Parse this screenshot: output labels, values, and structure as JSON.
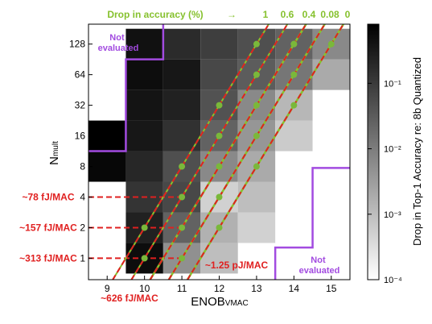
{
  "chart_data": {
    "type": "heatmap",
    "x_label_main": "ENOB",
    "x_label_sub": "VMAC",
    "y_label_main": "N",
    "y_label_sub": "mult",
    "x_ticks": [
      "9",
      "10",
      "11",
      "12",
      "13",
      "14",
      "15"
    ],
    "y_ticks": [
      "1",
      "2",
      "4",
      "8",
      "16",
      "32",
      "64",
      "128"
    ],
    "x_range": [
      8.5,
      15.5
    ],
    "y_range_log2": [
      -0.7,
      7.65
    ],
    "colorbar": {
      "label": "Drop in Top-1 Accuracy re: 8b Quantized",
      "scale": "log",
      "ticks": [
        "10⁻¹",
        "10⁻²",
        "10⁻³",
        "10⁻⁴"
      ],
      "tick_values": [
        0.1,
        0.01,
        0.001,
        0.0001
      ],
      "range": [
        0.0001,
        0.8
      ]
    },
    "accuracy_header": {
      "prefix": "Drop in  accuracy (%)",
      "arrow": "→",
      "values": [
        "1",
        "0.6",
        "0.4",
        "0.08",
        "0"
      ]
    },
    "annotations": {
      "not_evaluated_top": "Not evaluated",
      "not_evaluated_bottom": "Not evaluated",
      "energy_lines": [
        "~78 fJ/MAC",
        "~157 fJ/MAC",
        "~313 fJ/MAC",
        "~626 fJ/MAC",
        "~1.25 pJ/MAC"
      ]
    },
    "cells_log10": [
      [
        10,
        0,
        -0.3
      ],
      [
        10,
        1,
        -0.6
      ],
      [
        10,
        2,
        -0.9
      ],
      [
        9,
        3,
        -0.2
      ],
      [
        9,
        4,
        -0.05
      ],
      [
        10,
        3,
        -0.7
      ],
      [
        10,
        4,
        -0.45
      ],
      [
        10,
        5,
        -0.4
      ],
      [
        10,
        6,
        -0.3
      ],
      [
        10,
        7,
        -0.35
      ],
      [
        11,
        0,
        -2.3
      ],
      [
        11,
        1,
        -1.6
      ],
      [
        11,
        2,
        -1.2
      ],
      [
        11,
        3,
        -1.3
      ],
      [
        11,
        4,
        -0.85
      ],
      [
        11,
        5,
        -0.6
      ],
      [
        11,
        6,
        -0.45
      ],
      [
        11,
        7,
        -0.75
      ],
      [
        12,
        0,
        -3.0
      ],
      [
        12,
        1,
        -2.8
      ],
      [
        12,
        2,
        -3.3
      ],
      [
        12,
        3,
        -2.2
      ],
      [
        12,
        4,
        -1.6
      ],
      [
        12,
        5,
        -1.35
      ],
      [
        12,
        6,
        -1.2
      ],
      [
        12,
        7,
        -1.05
      ],
      [
        13,
        1,
        -3.3
      ],
      [
        13,
        2,
        -3.0
      ],
      [
        13,
        3,
        -2.7
      ],
      [
        13,
        4,
        -2.4
      ],
      [
        13,
        5,
        -2.2
      ],
      [
        13,
        6,
        -1.5
      ],
      [
        13,
        7,
        -1.3
      ],
      [
        14,
        4,
        -3.2
      ],
      [
        14,
        5,
        -2.9
      ],
      [
        14,
        6,
        -1.9
      ],
      [
        14,
        7,
        -1.6
      ],
      [
        15,
        6,
        -2.7
      ],
      [
        15,
        7,
        -2.2
      ]
    ],
    "iso_accuracy_points": [
      {
        "label": "1",
        "points": [
          [
            10,
            0
          ],
          [
            11,
            2
          ],
          [
            12,
            4
          ],
          [
            13,
            6
          ],
          [
            14,
            7
          ]
        ]
      },
      {
        "label": "0.6",
        "points": [
          [
            10,
            1
          ],
          [
            11,
            3
          ],
          [
            12,
            5
          ],
          [
            13,
            7
          ]
        ]
      },
      {
        "label": "0.4",
        "points": [
          [
            11,
            0
          ],
          [
            12,
            2
          ],
          [
            13,
            4
          ],
          [
            14,
            6
          ]
        ]
      },
      {
        "label": "0.08",
        "points": [
          [
            11,
            1
          ],
          [
            12,
            3
          ],
          [
            13,
            5
          ],
          [
            14,
            7
          ]
        ]
      },
      {
        "label": "0",
        "points": [
          [
            12,
            1
          ],
          [
            13,
            3
          ],
          [
            14,
            5
          ],
          [
            15,
            7
          ]
        ]
      }
    ],
    "energy_levels": [
      {
        "label": "~78 fJ/MAC",
        "y_log2": 2
      },
      {
        "label": "~157 fJ/MAC",
        "y_log2": 1
      },
      {
        "label": "~313 fJ/MAC",
        "y_log2": 0
      }
    ],
    "colors": {
      "red": "#e02020",
      "green": "#86c12e",
      "purple": "#a24be0",
      "dot": "#7ab83a"
    }
  }
}
